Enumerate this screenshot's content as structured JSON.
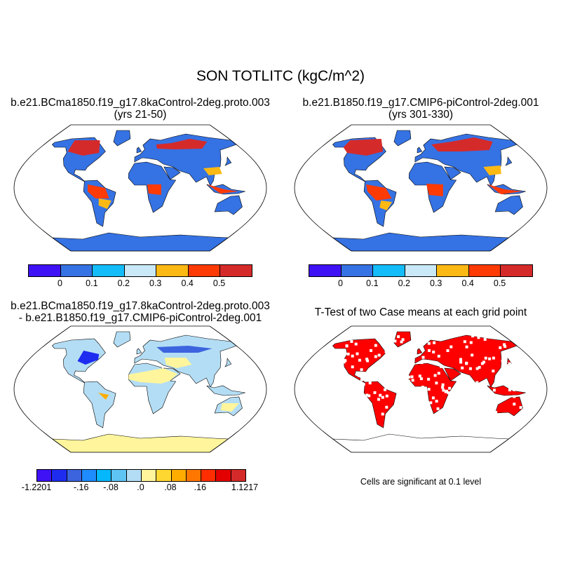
{
  "title": "SON TOTLITC (kgC/m^2)",
  "panels": [
    {
      "title_line1": "b.e21.BCma1850.f19_g17.8kaControl-2deg.proto.003",
      "title_line2": "(yrs 21-50)"
    },
    {
      "title_line1": "b.e21.B1850.f19_g17.CMIP6-piControl-2deg.001",
      "title_line2": "(yrs 301-330)"
    },
    {
      "title_line1": "b.e21.BCma1850.f19_g17.8kaControl-2deg.proto.003",
      "title_line2": "- b.e21.B1850.f19_g17.CMIP6-piControl-2deg.001"
    },
    {
      "title_line1": "T-Test of two Case means at each grid point",
      "note": "Cells are significant at 0.1 level",
      "significant_color": "#ff0000"
    }
  ],
  "colorbar_abs": {
    "colors": [
      "#3f12f5",
      "#3572e3",
      "#14bcfa",
      "#c9e8f8",
      "#fdb913",
      "#fe3a05",
      "#d52a2a"
    ],
    "labels": [
      "0",
      "0.1",
      "0.2",
      "0.3",
      "0.4",
      "0.5"
    ]
  },
  "colorbar_diff": {
    "colors": [
      "#3f12f5",
      "#1e2cf0",
      "#3c64df",
      "#1e8cfd",
      "#05b7fc",
      "#5ec4f4",
      "#b3ddf4",
      "#fff59c",
      "#ffd731",
      "#ffac00",
      "#ff7700",
      "#ff2e00",
      "#e30000",
      "#d52a2a"
    ],
    "labels": [
      "-1.2201",
      "-.16",
      "-.08",
      ".0",
      ".08",
      ".16",
      "1.1217"
    ]
  }
}
